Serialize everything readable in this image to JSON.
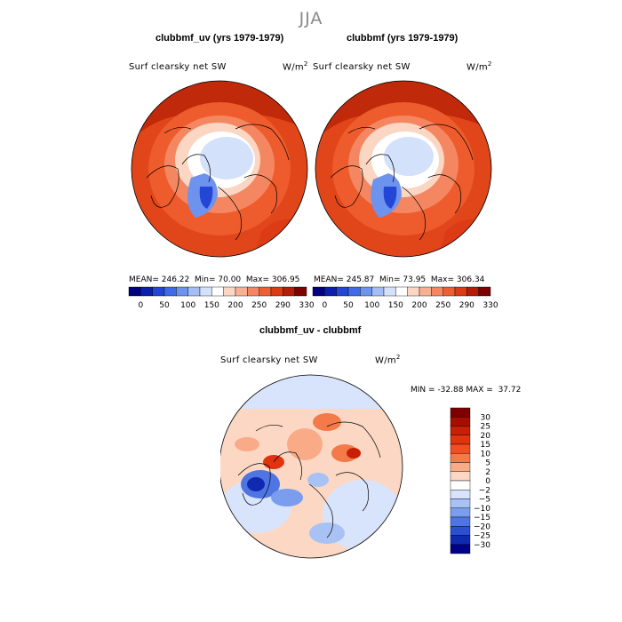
{
  "figure": {
    "season": "JJA"
  },
  "chart_data": [
    {
      "type": "heatmap",
      "projection": "polar-stereographic",
      "title": "clubbmf_uv (yrs 1979-1979)",
      "variable_label": "Surf clearsky net SW",
      "units_base": "W/m",
      "units_exp": "2",
      "stats": {
        "mean_label": "MEAN=",
        "mean": "246.22",
        "min_label": "Min=",
        "min": "70.00",
        "max_label": "Max=",
        "max": "306.95"
      },
      "colorbar": {
        "labels": [
          "0",
          "50",
          "100",
          "150",
          "200",
          "250",
          "290",
          "330"
        ],
        "colors": [
          "#000080",
          "#0b1fae",
          "#2346d6",
          "#3f6be8",
          "#6e93ef",
          "#a4bdf6",
          "#d4e1fb",
          "#ffffff",
          "#fbd6c2",
          "#f7b094",
          "#f48761",
          "#ef5e33",
          "#dc3b16",
          "#b41e08",
          "#7f0000"
        ]
      }
    },
    {
      "type": "heatmap",
      "projection": "polar-stereographic",
      "title": "clubbmf (yrs 1979-1979)",
      "variable_label": "Surf clearsky net SW",
      "units_base": "W/m",
      "units_exp": "2",
      "stats": {
        "mean_label": "MEAN=",
        "mean": "245.87",
        "min_label": "Min=",
        "min": "73.95",
        "max_label": "Max=",
        "max": "306.34"
      },
      "colorbar": {
        "labels": [
          "0",
          "50",
          "100",
          "150",
          "200",
          "250",
          "290",
          "330"
        ],
        "colors": [
          "#000080",
          "#0b1fae",
          "#2346d6",
          "#3f6be8",
          "#6e93ef",
          "#a4bdf6",
          "#d4e1fb",
          "#ffffff",
          "#fbd6c2",
          "#f7b094",
          "#f48761",
          "#ef5e33",
          "#dc3b16",
          "#b41e08",
          "#7f0000"
        ]
      }
    },
    {
      "type": "heatmap",
      "projection": "polar-stereographic",
      "title": "clubbmf_uv - clubbmf",
      "variable_label": "Surf clearsky net SW",
      "units_base": "W/m",
      "units_exp": "2",
      "stats": {
        "min_label": "MIN =",
        "min": "-32.88",
        "max_label": "MAX =",
        "max": "37.72"
      },
      "colorbar": {
        "orientation": "vertical",
        "labels": [
          "30",
          "25",
          "20",
          "15",
          "10",
          "5",
          "2",
          "0",
          "-2",
          "-5",
          "-10",
          "-15",
          "-20",
          "-25",
          "-30"
        ],
        "colors": [
          "#7f0000",
          "#a80e00",
          "#c81f05",
          "#e0330e",
          "#f0501f",
          "#f47a4a",
          "#f9ab88",
          "#fcd8c4",
          "#ffffff",
          "#d8e4fb",
          "#a9c2f5",
          "#7b9dee",
          "#4e75e2",
          "#2a4fd0",
          "#0f2ab0",
          "#000088"
        ]
      }
    }
  ]
}
